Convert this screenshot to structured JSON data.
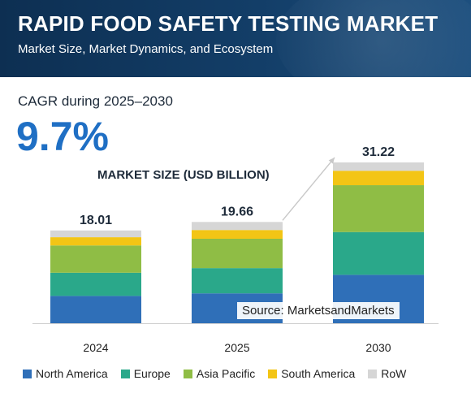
{
  "header": {
    "title": "RAPID FOOD SAFETY TESTING MARKET",
    "subtitle": "Market Size, Market Dynamics, and Ecosystem"
  },
  "cagr": {
    "label": "CAGR during 2025–2030",
    "value": "9.7%"
  },
  "source": "Source: MarketsandMarkets",
  "chart_data": {
    "type": "bar",
    "stacked": true,
    "title": "MARKET SIZE (USD BILLION)",
    "categories": [
      "2024",
      "2025",
      "2030"
    ],
    "totals": [
      "18.01",
      "19.66",
      "31.22"
    ],
    "series": [
      {
        "name": "North America",
        "color": "#2f6fb8",
        "values": [
          5.3,
          5.8,
          9.4
        ]
      },
      {
        "name": "Europe",
        "color": "#2aa88a",
        "values": [
          4.5,
          4.9,
          8.3
        ]
      },
      {
        "name": "Asia Pacific",
        "color": "#8fbd45",
        "values": [
          5.3,
          5.7,
          9.1
        ]
      },
      {
        "name": "South America",
        "color": "#f3c515",
        "values": [
          1.6,
          1.7,
          2.8
        ]
      },
      {
        "name": "RoW",
        "color": "#d6d6d6",
        "values": [
          1.31,
          1.56,
          1.62
        ]
      }
    ],
    "ylim": [
      0,
      31.22
    ],
    "legend_position": "bottom",
    "grid": false
  }
}
